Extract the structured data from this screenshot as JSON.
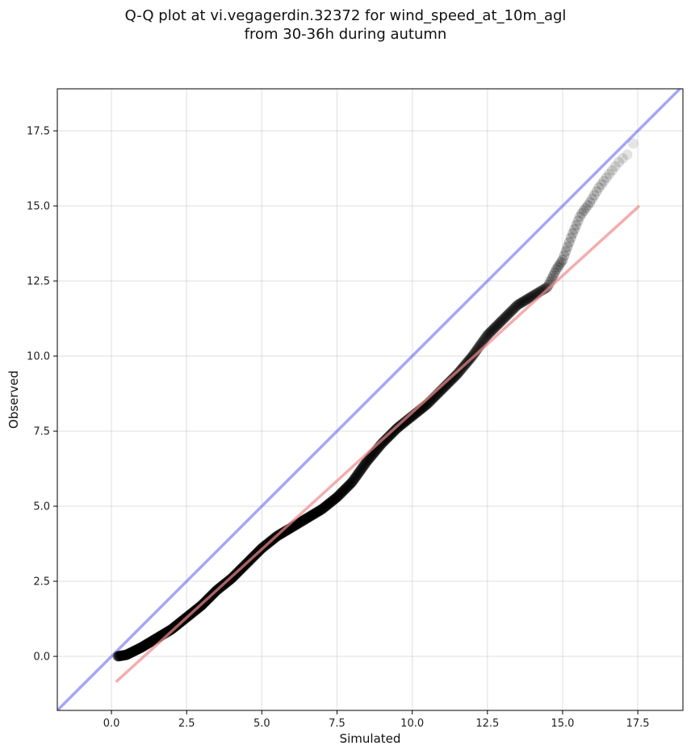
{
  "chart_data": {
    "type": "scatter",
    "title_line1": "Q-Q plot at vi.vegagerdin.32372 for wind_speed_at_10m_agl",
    "title_line2": "from 30-36h during autumn",
    "xlabel": "Simulated",
    "ylabel": "Observed",
    "xlim": [
      -1.8,
      19.0
    ],
    "ylim": [
      -1.8,
      18.9
    ],
    "xticks": [
      "0.0",
      "2.5",
      "5.0",
      "7.5",
      "10.0",
      "12.5",
      "15.0",
      "17.5"
    ],
    "yticks": [
      "0.0",
      "2.5",
      "5.0",
      "7.5",
      "10.0",
      "12.5",
      "15.0",
      "17.5"
    ],
    "grid": true,
    "identity_line": {
      "color": "#6b6bf0",
      "label": ""
    },
    "fit_line": {
      "color": "#f08a8a",
      "x": [
        0.15,
        17.55
      ],
      "y": [
        -0.85,
        15.0
      ]
    },
    "point_color": "#000000",
    "curve_x": [
      0.2,
      0.5,
      1.0,
      1.5,
      2.0,
      2.5,
      3.0,
      3.5,
      4.0,
      4.5,
      5.0,
      5.5,
      6.0,
      6.5,
      7.0,
      7.5,
      8.0,
      8.5,
      9.0,
      9.5,
      10.0,
      10.5,
      11.0,
      11.5,
      12.0,
      12.5,
      13.0,
      13.5,
      14.0,
      14.5,
      14.8,
      15.0,
      15.3,
      15.6,
      15.9,
      16.2,
      16.5,
      16.9,
      17.2,
      17.4,
      17.55
    ],
    "curve_y": [
      0.0,
      0.05,
      0.3,
      0.6,
      0.9,
      1.3,
      1.7,
      2.2,
      2.6,
      3.1,
      3.6,
      4.0,
      4.3,
      4.6,
      4.9,
      5.3,
      5.8,
      6.5,
      7.1,
      7.6,
      8.0,
      8.4,
      8.9,
      9.4,
      10.0,
      10.7,
      11.2,
      11.7,
      12.0,
      12.3,
      12.9,
      13.2,
      14.0,
      14.7,
      15.1,
      15.6,
      16.0,
      16.5,
      16.75,
      17.2,
      18.0
    ],
    "point_count": 650
  }
}
